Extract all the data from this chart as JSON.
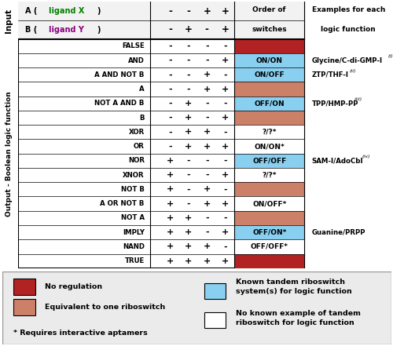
{
  "rows": [
    {
      "name": "FALSE",
      "vals": [
        "-",
        "-",
        "-",
        "-"
      ],
      "color": "darkred",
      "switch": "",
      "example": "",
      "sup": ""
    },
    {
      "name": "AND",
      "vals": [
        "-",
        "-",
        "-",
        "+"
      ],
      "color": "blue",
      "switch": "ON/ON",
      "example": "Glycine/C-di-GMP-I",
      "sup": "(i)"
    },
    {
      "name": "A AND NOT B",
      "vals": [
        "-",
        "-",
        "+",
        "-"
      ],
      "color": "blue",
      "switch": "ON/OFF",
      "example": "ZTP/THF-I",
      "sup": "(ii)"
    },
    {
      "name": "A",
      "vals": [
        "-",
        "-",
        "+",
        "+"
      ],
      "color": "salmon",
      "switch": "",
      "example": "",
      "sup": ""
    },
    {
      "name": "NOT A AND B",
      "vals": [
        "-",
        "+",
        "-",
        "-"
      ],
      "color": "blue",
      "switch": "OFF/ON",
      "example": "TPP/HMP-PP",
      "sup": "(iii)"
    },
    {
      "name": "B",
      "vals": [
        "-",
        "+",
        "-",
        "+"
      ],
      "color": "salmon",
      "switch": "",
      "example": "",
      "sup": ""
    },
    {
      "name": "XOR",
      "vals": [
        "-",
        "+",
        "+",
        "-"
      ],
      "color": "white",
      "switch": "?/?*",
      "example": "",
      "sup": ""
    },
    {
      "name": "OR",
      "vals": [
        "-",
        "+",
        "+",
        "+"
      ],
      "color": "white",
      "switch": "ON/ON*",
      "example": "",
      "sup": ""
    },
    {
      "name": "NOR",
      "vals": [
        "+",
        "-",
        "-",
        "-"
      ],
      "color": "blue",
      "switch": "OFF/OFF",
      "example": "SAM-I/AdoCbl",
      "sup": "(iv)"
    },
    {
      "name": "XNOR",
      "vals": [
        "+",
        "-",
        "-",
        "+"
      ],
      "color": "white",
      "switch": "?/?*",
      "example": "",
      "sup": ""
    },
    {
      "name": "NOT B",
      "vals": [
        "+",
        "-",
        "+",
        "-"
      ],
      "color": "salmon",
      "switch": "",
      "example": "",
      "sup": ""
    },
    {
      "name": "A OR NOT B",
      "vals": [
        "+",
        "-",
        "+",
        "+"
      ],
      "color": "white",
      "switch": "ON/OFF*",
      "example": "",
      "sup": ""
    },
    {
      "name": "NOT A",
      "vals": [
        "+",
        "+",
        "-",
        "-"
      ],
      "color": "salmon",
      "switch": "",
      "example": "",
      "sup": ""
    },
    {
      "name": "IMPLY",
      "vals": [
        "+",
        "+",
        "-",
        "+"
      ],
      "color": "blue",
      "switch": "OFF/ON*",
      "example": "Guanine/PRPP",
      "sup": ""
    },
    {
      "name": "NAND",
      "vals": [
        "+",
        "+",
        "+",
        "-"
      ],
      "color": "white",
      "switch": "OFF/OFF*",
      "example": "",
      "sup": ""
    },
    {
      "name": "TRUE",
      "vals": [
        "+",
        "+",
        "+",
        "+"
      ],
      "color": "darkred",
      "switch": "",
      "example": "",
      "sup": ""
    }
  ],
  "input_A": [
    "-",
    "-",
    "+",
    "+"
  ],
  "input_B": [
    "-",
    "+",
    "-",
    "+"
  ],
  "colors": {
    "darkred": "#B22222",
    "salmon": "#CD8068",
    "blue": "#89CFF0",
    "white": "#FFFFFF",
    "bg": "#EBEBEB"
  },
  "fig_width": 5.0,
  "fig_height": 4.41,
  "dpi": 100
}
